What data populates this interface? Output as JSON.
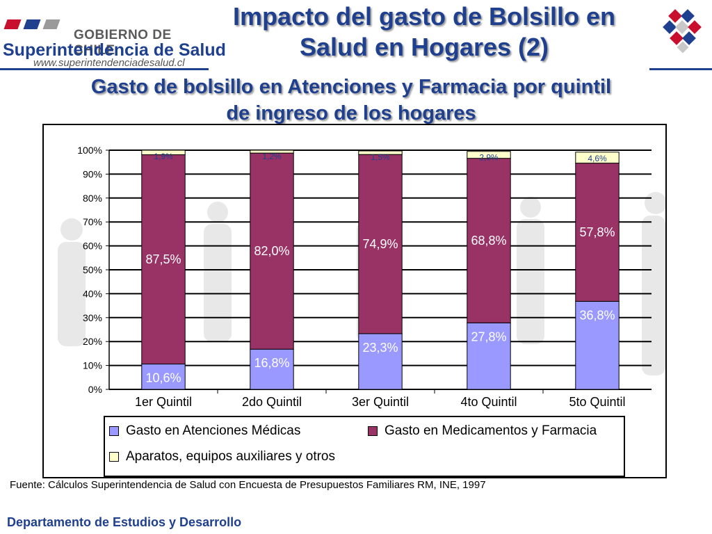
{
  "header": {
    "org_line1": "GOBIERNO DE CHILE",
    "org_line2": "Superintendencia de Salud",
    "org_url": "www.superintendenciadesalud.cl",
    "title_line1": "Impacto del gasto de Bolsillo en",
    "title_line2": "Salud en Hogares (2)",
    "subtitle_line1": "Gasto de bolsillo en Atenciones y Farmacia por quintil",
    "subtitle_line2": "de ingreso de los hogares"
  },
  "colors": {
    "accent": "#1f3f8f",
    "atenciones": "#9999ff",
    "medicamentos": "#993366",
    "aparatos": "#ffffcc"
  },
  "chart_data": {
    "type": "bar",
    "stacked": true,
    "categories": [
      "1er Quintil",
      "2do Quintil",
      "3er Quintil",
      "4to Quintil",
      "5to Quintil"
    ],
    "y_ticks": [
      "0%",
      "10%",
      "20%",
      "30%",
      "40%",
      "50%",
      "60%",
      "70%",
      "80%",
      "90%",
      "100%"
    ],
    "ylim": [
      0,
      100
    ],
    "grid": true,
    "legend_position": "bottom",
    "series": [
      {
        "name": "Gasto en Atenciones Médicas",
        "values": [
          10.6,
          16.8,
          23.3,
          27.8,
          36.8
        ],
        "labels": [
          "10,6%",
          "16,8%",
          "23,3%",
          "27,8%",
          "36,8%"
        ]
      },
      {
        "name": "Gasto en Medicamentos y Farmacia",
        "values": [
          87.5,
          82.0,
          74.9,
          68.8,
          57.8
        ],
        "labels": [
          "87,5%",
          "82,0%",
          "74,9%",
          "68,8%",
          "57,8%"
        ]
      },
      {
        "name": "Aparatos, equipos auxiliares y otros",
        "values": [
          1.9,
          1.2,
          1.5,
          2.9,
          4.6
        ],
        "labels": [
          "1,9%",
          "1,2%",
          "1,5%",
          "2,9%",
          "4,6%"
        ]
      }
    ]
  },
  "footer": {
    "source": "Fuente: Cálculos Superintendencia de Salud  con Encuesta de Presupuestos Familiares RM, INE, 1997",
    "department": "Departamento de Estudios y Desarrollo"
  }
}
